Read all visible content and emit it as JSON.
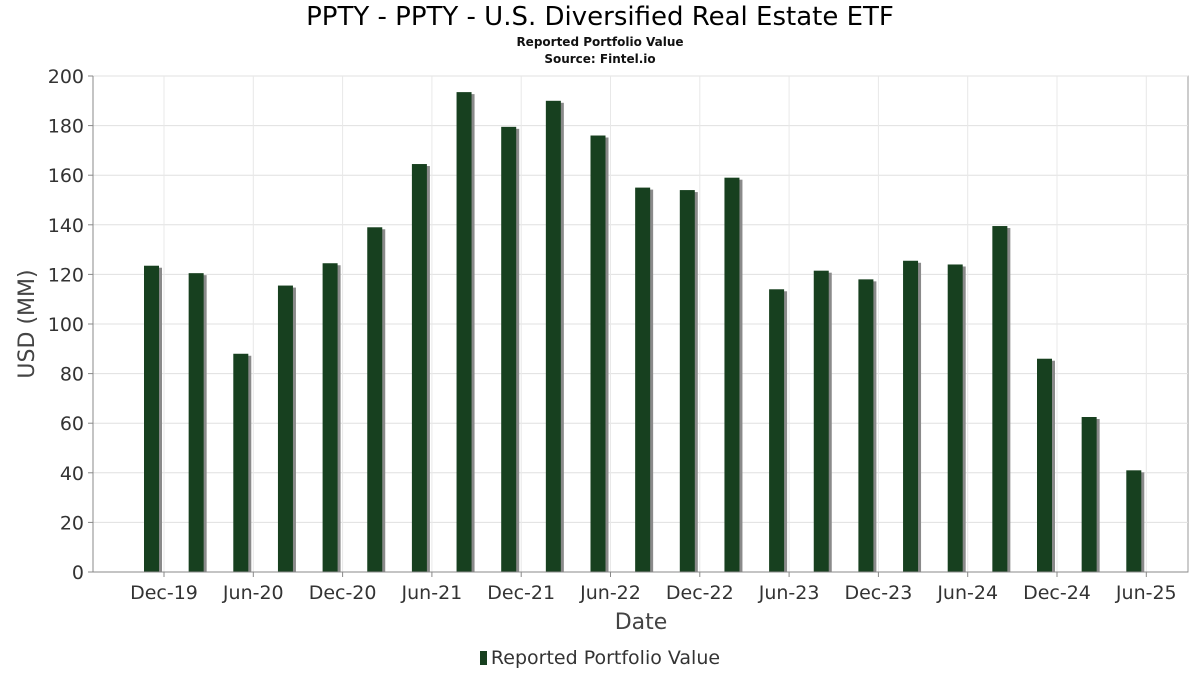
{
  "chart_data": {
    "type": "bar",
    "title": "PPTY - PPTY - U.S. Diversified Real Estate ETF",
    "subtitle": "Reported Portfolio Value",
    "source": "Source: Fintel.io",
    "xlabel": "Date",
    "ylabel": "USD (MM)",
    "ylim": [
      0,
      200
    ],
    "yticks": [
      0,
      20,
      40,
      60,
      80,
      100,
      120,
      140,
      160,
      180,
      200
    ],
    "x_tick_labels": [
      "Dec-19",
      "Jun-20",
      "Dec-20",
      "Jun-21",
      "Dec-21",
      "Jun-22",
      "Dec-22",
      "Jun-23",
      "Dec-23",
      "Jun-24",
      "Dec-24",
      "Jun-25"
    ],
    "grid": true,
    "legend_position": "bottom-center",
    "series": [
      {
        "name": "Reported Portfolio Value",
        "color": "#17401f",
        "values": [
          123.5,
          120.5,
          88,
          115.5,
          124.5,
          139,
          164.5,
          193.5,
          179.5,
          190,
          176,
          155,
          154,
          159,
          114,
          121.5,
          118,
          125.5,
          124,
          139.5,
          86,
          62.5,
          41
        ]
      }
    ]
  }
}
